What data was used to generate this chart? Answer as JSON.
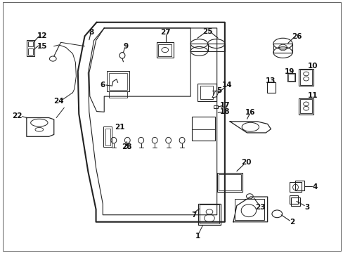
{
  "background_color": "#ffffff",
  "figure_width": 4.89,
  "figure_height": 3.6,
  "dpi": 100,
  "line_color": "#222222",
  "text_color": "#111111",
  "font_size": 7.5
}
